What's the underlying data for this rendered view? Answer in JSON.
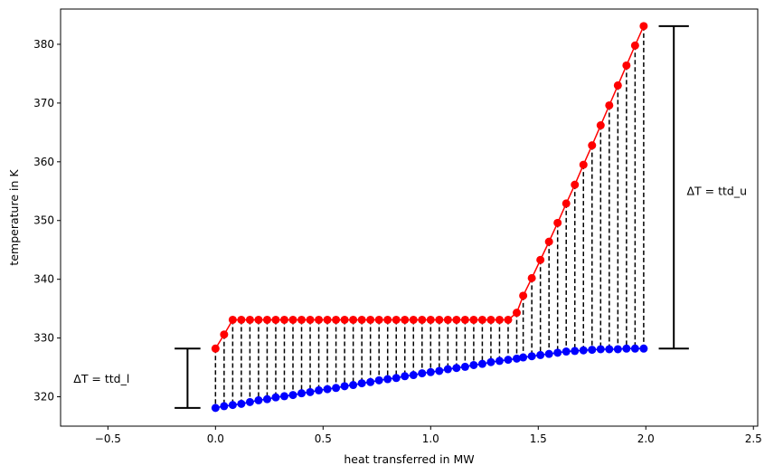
{
  "chart_data": {
    "type": "line",
    "xlabel": "heat transferred in MW",
    "ylabel": "temperature in K",
    "xlim": [
      -0.72,
      2.52
    ],
    "ylim": [
      315.0,
      386.0
    ],
    "xticks": [
      -0.5,
      0.0,
      0.5,
      1.0,
      1.5,
      2.0,
      2.5
    ],
    "xtick_labels": [
      "−0.5",
      "0.0",
      "0.5",
      "1.0",
      "1.5",
      "2.0",
      "2.5"
    ],
    "yticks": [
      320,
      330,
      340,
      350,
      360,
      370,
      380
    ],
    "ytick_labels": [
      "320",
      "330",
      "340",
      "350",
      "360",
      "370",
      "380"
    ],
    "grid": false,
    "x": [
      0.0,
      0.04,
      0.08,
      0.12,
      0.16,
      0.2,
      0.24,
      0.28,
      0.32,
      0.36,
      0.4,
      0.44,
      0.48,
      0.52,
      0.56,
      0.6,
      0.64,
      0.68,
      0.72,
      0.76,
      0.8,
      0.84,
      0.88,
      0.92,
      0.96,
      1.0,
      1.04,
      1.08,
      1.12,
      1.16,
      1.2,
      1.24,
      1.28,
      1.32,
      1.36,
      1.4,
      1.43,
      1.47,
      1.51,
      1.55,
      1.59,
      1.63,
      1.67,
      1.71,
      1.75,
      1.79,
      1.83,
      1.87,
      1.91,
      1.95,
      1.99
    ],
    "series": [
      {
        "color": "#ff0000",
        "values": [
          328.2,
          330.6,
          333.1,
          333.1,
          333.1,
          333.1,
          333.1,
          333.1,
          333.1,
          333.1,
          333.1,
          333.1,
          333.1,
          333.1,
          333.1,
          333.1,
          333.1,
          333.1,
          333.1,
          333.1,
          333.1,
          333.1,
          333.1,
          333.1,
          333.1,
          333.1,
          333.1,
          333.1,
          333.1,
          333.1,
          333.1,
          333.1,
          333.1,
          333.1,
          333.1,
          334.3,
          337.2,
          340.2,
          343.3,
          346.4,
          349.6,
          352.9,
          356.1,
          359.5,
          362.8,
          366.2,
          369.6,
          373.0,
          376.4,
          379.8,
          383.1
        ]
      },
      {
        "color": "#0000ff",
        "values": [
          318.1,
          318.4,
          318.6,
          318.8,
          319.1,
          319.4,
          319.6,
          319.9,
          320.1,
          320.3,
          320.6,
          320.8,
          321.1,
          321.3,
          321.5,
          321.8,
          322.0,
          322.3,
          322.5,
          322.8,
          323.0,
          323.2,
          323.5,
          323.7,
          324.0,
          324.2,
          324.4,
          324.7,
          324.9,
          325.1,
          325.4,
          325.6,
          325.9,
          326.1,
          326.3,
          326.5,
          326.7,
          326.9,
          327.1,
          327.3,
          327.5,
          327.7,
          327.8,
          327.9,
          328.0,
          328.1,
          328.1,
          328.1,
          328.2,
          328.2,
          328.2
        ]
      }
    ],
    "connectors": "dashed vertical lines between hot and cold points",
    "annotations": [
      {
        "label": "ΔT = ttd_l",
        "x": -0.66,
        "y": 323.0,
        "bar_x": -0.13,
        "bar_from": 318.1,
        "bar_to": 328.2,
        "bar_halfwidth": 0.06
      },
      {
        "label": "ΔT = ttd_u",
        "x": 2.19,
        "y": 355.0,
        "bar_x": 2.13,
        "bar_from": 328.2,
        "bar_to": 383.1,
        "bar_halfwidth": 0.07
      }
    ]
  }
}
